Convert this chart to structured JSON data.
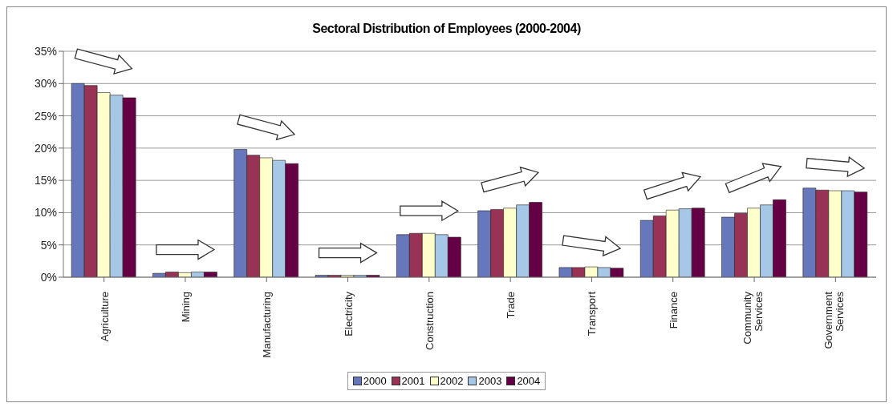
{
  "chart_data": {
    "type": "bar",
    "title": "Sectoral Distribution of Employees (2000-2004)",
    "categories": [
      "Agriculture",
      "Mining",
      "Manufacturing",
      "Electricity",
      "Construction",
      "Trade",
      "Transport",
      "Finance",
      "Community Services",
      "Government Services"
    ],
    "series": [
      {
        "name": "2000",
        "color": "#6677bb",
        "values": [
          30.0,
          0.6,
          19.8,
          0.3,
          6.6,
          10.3,
          1.5,
          8.8,
          9.3,
          13.8
        ]
      },
      {
        "name": "2001",
        "color": "#993355",
        "values": [
          29.7,
          0.8,
          18.9,
          0.3,
          6.8,
          10.5,
          1.5,
          9.5,
          9.9,
          13.5
        ]
      },
      {
        "name": "2002",
        "color": "#ffffcc",
        "values": [
          28.6,
          0.7,
          18.5,
          0.3,
          6.8,
          10.7,
          1.6,
          10.4,
          10.7,
          13.4
        ]
      },
      {
        "name": "2003",
        "color": "#a6c8e6",
        "values": [
          28.2,
          0.8,
          18.1,
          0.3,
          6.6,
          11.2,
          1.5,
          10.6,
          11.2,
          13.4
        ]
      },
      {
        "name": "2004",
        "color": "#660044",
        "values": [
          27.8,
          0.8,
          17.6,
          0.3,
          6.2,
          11.6,
          1.4,
          10.7,
          12.0,
          13.2
        ]
      }
    ],
    "ylim": [
      0,
      35
    ],
    "yticks": [
      {
        "value": 0,
        "label": "0%"
      },
      {
        "value": 5,
        "label": "5%"
      },
      {
        "value": 10,
        "label": "10%"
      },
      {
        "value": 15,
        "label": "15%"
      },
      {
        "value": 20,
        "label": "20%"
      },
      {
        "value": 25,
        "label": "25%"
      },
      {
        "value": 30,
        "label": "30%"
      },
      {
        "value": 35,
        "label": "35%"
      }
    ],
    "grid": "y",
    "legend": "bottom"
  }
}
